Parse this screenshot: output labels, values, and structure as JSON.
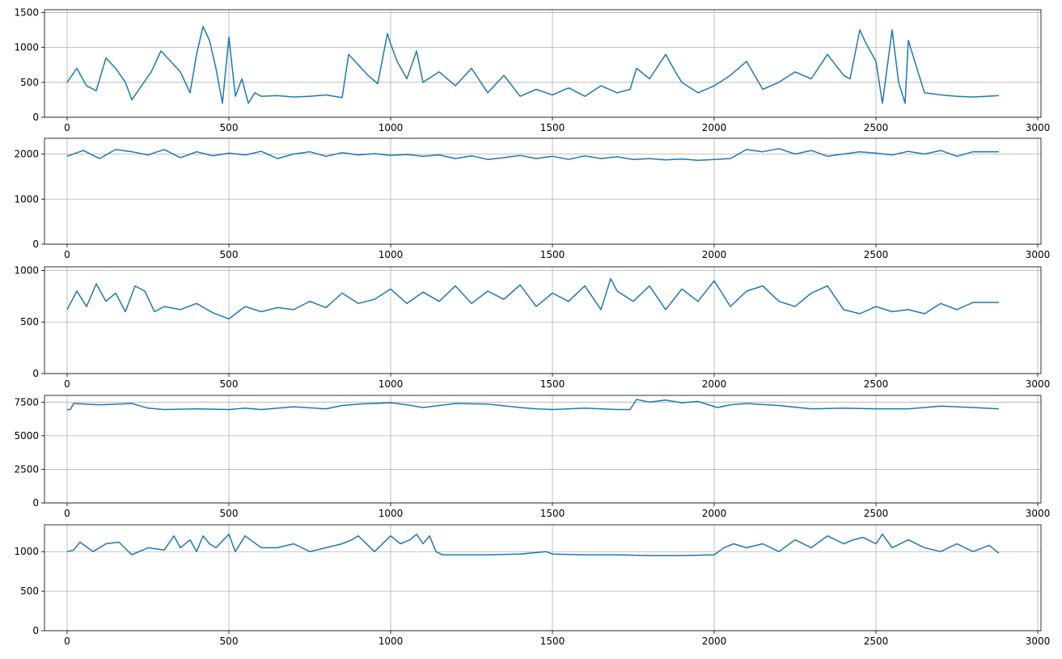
{
  "chart_data": [
    {
      "type": "line",
      "xlim": [
        -70,
        3010
      ],
      "ylim": [
        0,
        1540
      ],
      "x_ticks": [
        0,
        500,
        1000,
        1500,
        2000,
        2500,
        3000
      ],
      "y_ticks": [
        0,
        500,
        1000,
        1500
      ],
      "grid": true,
      "color": "#1f77b4",
      "series": [
        {
          "x": [
            0,
            30,
            60,
            90,
            120,
            150,
            180,
            200,
            230,
            260,
            290,
            320,
            350,
            380,
            400,
            420,
            440,
            460,
            480,
            500,
            520,
            540,
            560,
            580,
            600,
            650,
            700,
            750,
            800,
            850,
            870,
            900,
            930,
            960,
            990,
            1000,
            1020,
            1050,
            1080,
            1100,
            1150,
            1200,
            1250,
            1300,
            1350,
            1400,
            1450,
            1500,
            1550,
            1600,
            1650,
            1700,
            1740,
            1760,
            1800,
            1850,
            1880,
            1900,
            1950,
            2000,
            2050,
            2100,
            2150,
            2200,
            2250,
            2300,
            2350,
            2400,
            2420,
            2450,
            2470,
            2500,
            2520,
            2550,
            2570,
            2590,
            2600,
            2650,
            2700,
            2750,
            2800,
            2880
          ],
          "y": [
            500,
            700,
            450,
            380,
            850,
            700,
            500,
            250,
            450,
            650,
            950,
            800,
            650,
            350,
            900,
            1300,
            1100,
            700,
            200,
            1150,
            300,
            550,
            200,
            350,
            300,
            310,
            290,
            300,
            320,
            280,
            900,
            750,
            600,
            480,
            1200,
            1050,
            800,
            550,
            950,
            500,
            650,
            450,
            700,
            350,
            600,
            300,
            400,
            320,
            420,
            300,
            450,
            350,
            400,
            700,
            550,
            900,
            650,
            500,
            350,
            450,
            600,
            800,
            400,
            500,
            650,
            550,
            900,
            600,
            550,
            1250,
            1050,
            800,
            200,
            1250,
            500,
            200,
            1100,
            350,
            320,
            300,
            290,
            310
          ]
        }
      ]
    },
    {
      "type": "line",
      "xlim": [
        -70,
        3010
      ],
      "ylim": [
        0,
        2350
      ],
      "x_ticks": [
        0,
        500,
        1000,
        1500,
        2000,
        2500,
        3000
      ],
      "y_ticks": [
        0,
        1000,
        2000
      ],
      "grid": true,
      "color": "#1f77b4",
      "series": [
        {
          "x": [
            0,
            50,
            100,
            150,
            200,
            250,
            300,
            350,
            400,
            450,
            500,
            550,
            600,
            650,
            700,
            750,
            800,
            850,
            900,
            950,
            1000,
            1050,
            1100,
            1150,
            1200,
            1250,
            1300,
            1350,
            1400,
            1450,
            1500,
            1550,
            1600,
            1650,
            1700,
            1750,
            1800,
            1850,
            1900,
            1950,
            2000,
            2050,
            2100,
            2150,
            2200,
            2250,
            2300,
            2350,
            2400,
            2450,
            2500,
            2550,
            2600,
            2650,
            2700,
            2750,
            2800,
            2880
          ],
          "y": [
            1950,
            2080,
            1900,
            2100,
            2050,
            1980,
            2100,
            1920,
            2050,
            1960,
            2020,
            1980,
            2060,
            1900,
            2000,
            2050,
            1950,
            2030,
            1980,
            2010,
            1970,
            1990,
            1950,
            1980,
            1900,
            1960,
            1880,
            1920,
            1970,
            1900,
            1950,
            1880,
            1960,
            1900,
            1940,
            1880,
            1900,
            1870,
            1890,
            1860,
            1880,
            1900,
            2100,
            2050,
            2120,
            2000,
            2080,
            1950,
            2000,
            2050,
            2020,
            1980,
            2060,
            2000,
            2080,
            1950,
            2050,
            2050
          ]
        }
      ]
    },
    {
      "type": "line",
      "xlim": [
        -70,
        3010
      ],
      "ylim": [
        0,
        1035
      ],
      "x_ticks": [
        0,
        500,
        1000,
        1500,
        2000,
        2500,
        3000
      ],
      "y_ticks": [
        0,
        500,
        1000
      ],
      "grid": true,
      "color": "#1f77b4",
      "series": [
        {
          "x": [
            0,
            30,
            60,
            90,
            120,
            150,
            180,
            210,
            240,
            270,
            300,
            350,
            400,
            450,
            500,
            550,
            600,
            650,
            700,
            750,
            800,
            850,
            900,
            950,
            1000,
            1050,
            1100,
            1150,
            1200,
            1250,
            1300,
            1350,
            1400,
            1450,
            1500,
            1550,
            1600,
            1650,
            1680,
            1700,
            1750,
            1800,
            1850,
            1900,
            1950,
            2000,
            2050,
            2100,
            2150,
            2200,
            2250,
            2300,
            2350,
            2400,
            2450,
            2500,
            2550,
            2600,
            2650,
            2700,
            2750,
            2800,
            2880
          ],
          "y": [
            620,
            800,
            650,
            870,
            700,
            780,
            600,
            850,
            800,
            600,
            650,
            620,
            680,
            590,
            530,
            650,
            600,
            640,
            620,
            700,
            640,
            780,
            680,
            720,
            820,
            680,
            790,
            700,
            850,
            680,
            800,
            720,
            860,
            650,
            780,
            700,
            850,
            620,
            920,
            800,
            700,
            850,
            620,
            820,
            700,
            900,
            650,
            800,
            850,
            700,
            650,
            780,
            850,
            620,
            580,
            650,
            600,
            620,
            580,
            680,
            620,
            690,
            690
          ]
        }
      ]
    },
    {
      "type": "line",
      "xlim": [
        -70,
        3010
      ],
      "ylim": [
        0,
        8000
      ],
      "x_ticks": [
        0,
        500,
        1000,
        1500,
        2000,
        2500,
        3000
      ],
      "y_ticks": [
        0,
        2500,
        5000,
        7500
      ],
      "grid": true,
      "color": "#1f77b4",
      "series": [
        {
          "x": [
            0,
            10,
            20,
            100,
            200,
            250,
            300,
            400,
            500,
            550,
            600,
            700,
            800,
            850,
            900,
            1000,
            1050,
            1100,
            1150,
            1200,
            1300,
            1400,
            1450,
            1500,
            1600,
            1700,
            1740,
            1760,
            1800,
            1850,
            1900,
            1950,
            1990,
            2010,
            2050,
            2100,
            2200,
            2300,
            2400,
            2500,
            2600,
            2700,
            2800,
            2880
          ],
          "y": [
            6950,
            6950,
            7400,
            7300,
            7400,
            7050,
            6950,
            7000,
            6950,
            7050,
            6950,
            7150,
            7000,
            7250,
            7350,
            7450,
            7300,
            7100,
            7250,
            7400,
            7350,
            7100,
            7000,
            6950,
            7050,
            6950,
            6950,
            7700,
            7500,
            7650,
            7450,
            7550,
            7250,
            7100,
            7300,
            7400,
            7250,
            7000,
            7050,
            7000,
            7000,
            7200,
            7100,
            7000
          ]
        }
      ]
    },
    {
      "type": "line",
      "xlim": [
        -70,
        3010
      ],
      "ylim": [
        0,
        1340
      ],
      "x_ticks": [
        0,
        500,
        1000,
        1500,
        2000,
        2500,
        3000
      ],
      "y_ticks": [
        0,
        500,
        1000
      ],
      "grid": true,
      "color": "#1f77b4",
      "series": [
        {
          "x": [
            0,
            20,
            40,
            60,
            80,
            120,
            160,
            200,
            250,
            300,
            330,
            350,
            380,
            400,
            420,
            440,
            460,
            500,
            520,
            550,
            600,
            650,
            700,
            750,
            800,
            850,
            880,
            900,
            950,
            1000,
            1030,
            1060,
            1080,
            1100,
            1120,
            1140,
            1160,
            1200,
            1300,
            1400,
            1480,
            1500,
            1600,
            1700,
            1800,
            1900,
            2000,
            2030,
            2060,
            2100,
            2150,
            2200,
            2250,
            2300,
            2350,
            2400,
            2430,
            2460,
            2500,
            2520,
            2550,
            2600,
            2650,
            2700,
            2750,
            2800,
            2850,
            2880
          ],
          "y": [
            1000,
            1020,
            1120,
            1060,
            1000,
            1100,
            1120,
            960,
            1050,
            1020,
            1200,
            1050,
            1150,
            1000,
            1200,
            1100,
            1050,
            1220,
            1000,
            1200,
            1050,
            1050,
            1100,
            1000,
            1050,
            1100,
            1150,
            1200,
            1000,
            1200,
            1100,
            1150,
            1220,
            1100,
            1200,
            1000,
            960,
            960,
            960,
            970,
            1000,
            970,
            960,
            960,
            950,
            950,
            960,
            1050,
            1100,
            1050,
            1100,
            1000,
            1150,
            1050,
            1200,
            1100,
            1150,
            1180,
            1100,
            1220,
            1050,
            1150,
            1050,
            1000,
            1100,
            1000,
            1080,
            980
          ]
        }
      ]
    }
  ]
}
